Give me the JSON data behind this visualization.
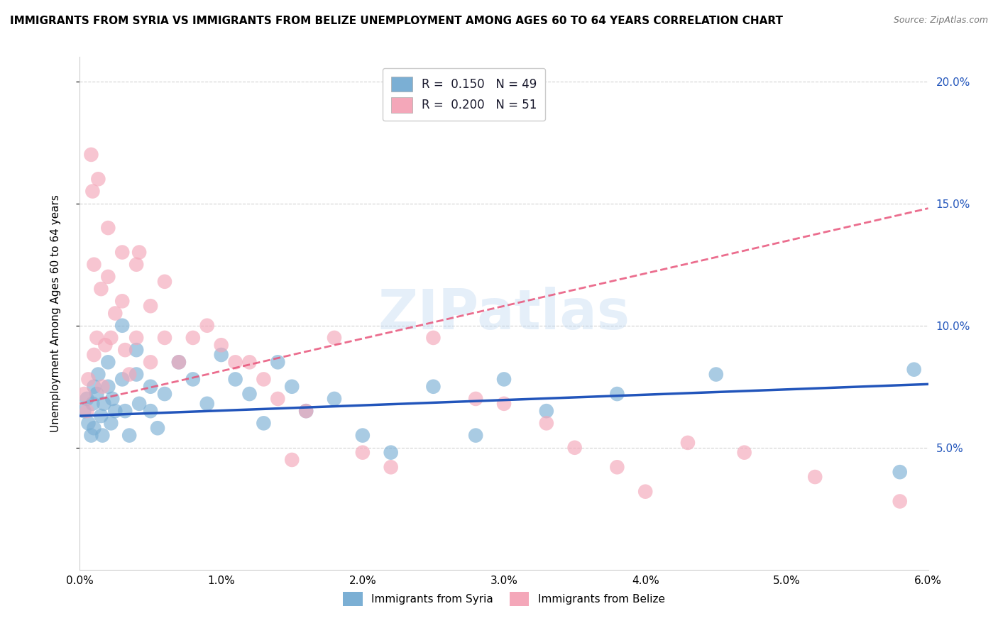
{
  "title": "IMMIGRANTS FROM SYRIA VS IMMIGRANTS FROM BELIZE UNEMPLOYMENT AMONG AGES 60 TO 64 YEARS CORRELATION CHART",
  "source": "Source: ZipAtlas.com",
  "ylabel": "Unemployment Among Ages 60 to 64 years",
  "legend_syria": "Immigrants from Syria",
  "legend_belize": "Immigrants from Belize",
  "R_syria": 0.15,
  "N_syria": 49,
  "R_belize": 0.2,
  "N_belize": 51,
  "xlim": [
    0.0,
    0.06
  ],
  "ylim": [
    0.0,
    0.21
  ],
  "syria_color": "#7BAFD4",
  "belize_color": "#F4A7B9",
  "syria_line_color": "#2255BB",
  "belize_line_color": "#E8547A",
  "watermark": "ZIPatlas",
  "syria_x": [
    0.0003,
    0.0005,
    0.0006,
    0.0008,
    0.0009,
    0.001,
    0.001,
    0.0012,
    0.0013,
    0.0015,
    0.0016,
    0.0017,
    0.002,
    0.002,
    0.0022,
    0.0023,
    0.0025,
    0.003,
    0.003,
    0.0032,
    0.0035,
    0.004,
    0.004,
    0.0042,
    0.005,
    0.005,
    0.0055,
    0.006,
    0.007,
    0.008,
    0.009,
    0.01,
    0.011,
    0.012,
    0.013,
    0.014,
    0.015,
    0.016,
    0.018,
    0.02,
    0.022,
    0.025,
    0.028,
    0.03,
    0.033,
    0.038,
    0.045,
    0.058,
    0.059
  ],
  "syria_y": [
    0.065,
    0.07,
    0.06,
    0.055,
    0.068,
    0.075,
    0.058,
    0.072,
    0.08,
    0.063,
    0.055,
    0.068,
    0.085,
    0.075,
    0.06,
    0.07,
    0.065,
    0.1,
    0.078,
    0.065,
    0.055,
    0.09,
    0.08,
    0.068,
    0.075,
    0.065,
    0.058,
    0.072,
    0.085,
    0.078,
    0.068,
    0.088,
    0.078,
    0.072,
    0.06,
    0.085,
    0.075,
    0.065,
    0.07,
    0.055,
    0.048,
    0.075,
    0.055,
    0.078,
    0.065,
    0.072,
    0.08,
    0.04,
    0.082
  ],
  "belize_x": [
    0.0003,
    0.0005,
    0.0006,
    0.0008,
    0.0009,
    0.001,
    0.001,
    0.0012,
    0.0013,
    0.0015,
    0.0016,
    0.0018,
    0.002,
    0.002,
    0.0022,
    0.0025,
    0.003,
    0.003,
    0.0032,
    0.0035,
    0.004,
    0.004,
    0.0042,
    0.005,
    0.005,
    0.006,
    0.006,
    0.007,
    0.008,
    0.009,
    0.01,
    0.011,
    0.012,
    0.013,
    0.014,
    0.015,
    0.016,
    0.018,
    0.02,
    0.022,
    0.025,
    0.028,
    0.03,
    0.033,
    0.035,
    0.038,
    0.04,
    0.043,
    0.047,
    0.052,
    0.058
  ],
  "belize_y": [
    0.072,
    0.065,
    0.078,
    0.17,
    0.155,
    0.125,
    0.088,
    0.095,
    0.16,
    0.115,
    0.075,
    0.092,
    0.14,
    0.12,
    0.095,
    0.105,
    0.13,
    0.11,
    0.09,
    0.08,
    0.125,
    0.095,
    0.13,
    0.108,
    0.085,
    0.118,
    0.095,
    0.085,
    0.095,
    0.1,
    0.092,
    0.085,
    0.085,
    0.078,
    0.07,
    0.045,
    0.065,
    0.095,
    0.048,
    0.042,
    0.095,
    0.07,
    0.068,
    0.06,
    0.05,
    0.042,
    0.032,
    0.052,
    0.048,
    0.038,
    0.028
  ],
  "grid_color": "#CCCCCC",
  "background_color": "#FFFFFF",
  "title_fontsize": 11,
  "axis_label_fontsize": 11,
  "tick_fontsize": 11
}
